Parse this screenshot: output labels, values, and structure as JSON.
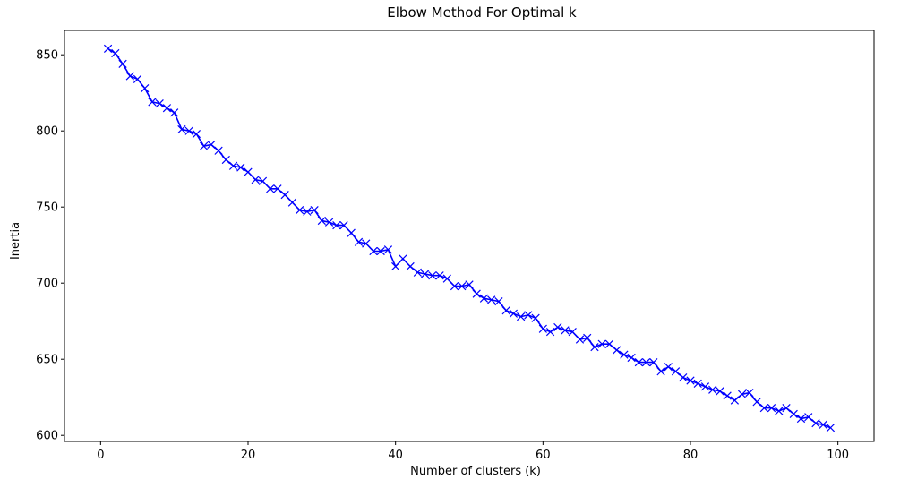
{
  "chart_data": {
    "type": "line",
    "title": "Elbow Method For Optimal k",
    "xlabel": "Number of clusters (k)",
    "ylabel": "Inertia",
    "xlim": [
      -4.9,
      104.9
    ],
    "ylim": [
      596,
      866
    ],
    "xticks": [
      0,
      20,
      40,
      60,
      80,
      100
    ],
    "yticks": [
      600,
      650,
      700,
      750,
      800,
      850
    ],
    "grid": false,
    "legend": "none",
    "series": [
      {
        "name": "inertia",
        "color": "#0000ff",
        "marker": "x",
        "x": [
          1,
          2,
          3,
          4,
          5,
          6,
          7,
          8,
          9,
          10,
          11,
          12,
          13,
          14,
          15,
          16,
          17,
          18,
          19,
          20,
          21,
          22,
          23,
          24,
          25,
          26,
          27,
          28,
          29,
          30,
          31,
          32,
          33,
          34,
          35,
          36,
          37,
          38,
          39,
          40,
          41,
          42,
          43,
          44,
          45,
          46,
          47,
          48,
          49,
          50,
          51,
          52,
          53,
          54,
          55,
          56,
          57,
          58,
          59,
          60,
          61,
          62,
          63,
          64,
          65,
          66,
          67,
          68,
          69,
          70,
          71,
          72,
          73,
          74,
          75,
          76,
          77,
          78,
          79,
          80,
          81,
          82,
          83,
          84,
          85,
          86,
          87,
          88,
          89,
          90,
          91,
          92,
          93,
          94,
          95,
          96,
          97,
          98,
          99
        ],
        "y": [
          854,
          851,
          844,
          836,
          834,
          828,
          819,
          818,
          815,
          812,
          801,
          800,
          798,
          790,
          791,
          787,
          781,
          777,
          776,
          773,
          768,
          767,
          762,
          762,
          758,
          753,
          748,
          747,
          748,
          741,
          740,
          738,
          738,
          733,
          727,
          726,
          721,
          721,
          722,
          711,
          716,
          711,
          707,
          706,
          705,
          705,
          703,
          698,
          698,
          699,
          693,
          690,
          689,
          688,
          682,
          680,
          678,
          679,
          677,
          670,
          668,
          671,
          669,
          668,
          663,
          664,
          658,
          660,
          660,
          656,
          653,
          651,
          648,
          648,
          648,
          642,
          645,
          642,
          638,
          636,
          634,
          632,
          630,
          629,
          626,
          623,
          627,
          628,
          622,
          618,
          618,
          616,
          618,
          614,
          611,
          612,
          608,
          607,
          605
        ]
      }
    ]
  }
}
